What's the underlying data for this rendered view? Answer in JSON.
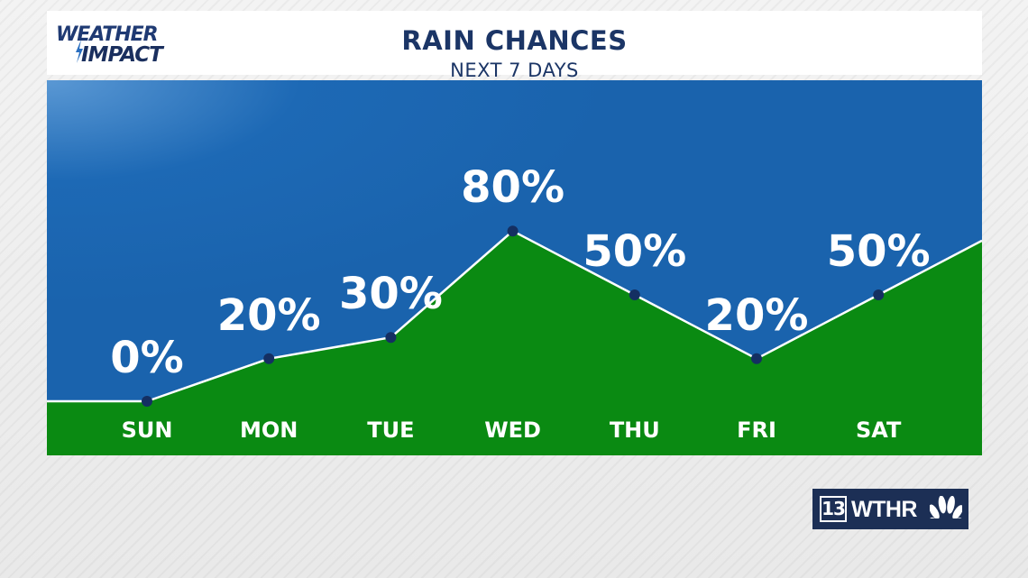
{
  "header": {
    "logo_top": "WEATHER",
    "logo_bottom": "IMPACT",
    "title": "RAIN CHANCES",
    "subtitle": "NEXT 7 DAYS"
  },
  "badge": {
    "channel_number": "13",
    "station_name": "WTHR",
    "network_icon": "peacock-icon"
  },
  "colors": {
    "sky": "#1a66b3",
    "area": "#0a8a12",
    "line": "#ffffff",
    "marker": "#142f62",
    "label": "#ffffff"
  },
  "chart_data": {
    "type": "area",
    "title": "RAIN CHANCES",
    "subtitle": "NEXT 7 DAYS",
    "categories": [
      "SUN",
      "MON",
      "TUE",
      "WED",
      "THU",
      "FRI",
      "SAT"
    ],
    "series": [
      {
        "values": [
          0,
          20,
          30,
          80,
          50,
          20,
          50
        ],
        "labels": [
          "0%",
          "20%",
          "30%",
          "80%",
          "50%",
          "20%",
          "50%"
        ]
      }
    ],
    "ylim": [
      0,
      100
    ],
    "grid": false,
    "legend": "none"
  }
}
